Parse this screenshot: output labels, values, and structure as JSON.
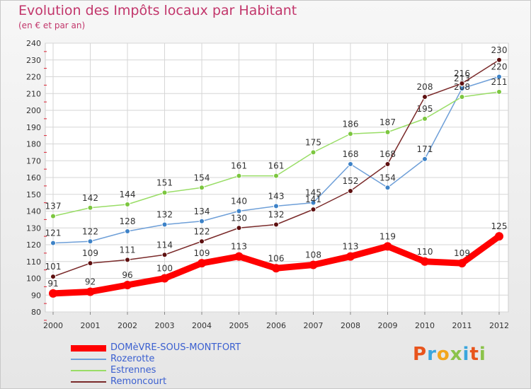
{
  "title": "Evolution des Impôts locaux par Habitant",
  "subtitle": "(en € et par an)",
  "logo": {
    "text": "Proxiti",
    "colors": [
      "#e8541c",
      "#3aa6dd",
      "#f2a51c",
      "#8bc34a",
      "#3aa6dd",
      "#e8541c",
      "#8bc34a"
    ]
  },
  "chart_data": {
    "type": "line",
    "x": [
      "2000",
      "2001",
      "2002",
      "2003",
      "2004",
      "2005",
      "2006",
      "2007",
      "2008",
      "2009",
      "2010",
      "2011",
      "2012"
    ],
    "ylim": [
      80,
      240
    ],
    "yticks": [
      80,
      90,
      100,
      110,
      120,
      130,
      140,
      150,
      160,
      170,
      180,
      190,
      200,
      210,
      220,
      230,
      240
    ],
    "grid": true,
    "legend_position": "bottom-left",
    "series": [
      {
        "name": "DOMèVRE-SOUS-MONTFORT",
        "color": "#ff0000",
        "marker": "#ff0000",
        "values": [
          91,
          92,
          96,
          100,
          109,
          113,
          106,
          108,
          113,
          119,
          110,
          109,
          125
        ]
      },
      {
        "name": "Rozerotte",
        "color": "#6e9fd8",
        "marker": "#3d82c7",
        "values": [
          121,
          122,
          128,
          132,
          134,
          140,
          143,
          145,
          168,
          154,
          171,
          213,
          220
        ]
      },
      {
        "name": "Estrennes",
        "color": "#99dd66",
        "marker": "#7cc63f",
        "values": [
          137,
          142,
          144,
          151,
          154,
          161,
          161,
          175,
          186,
          187,
          195,
          208,
          211
        ]
      },
      {
        "name": "Remoncourt",
        "color": "#7a2a2a",
        "marker": "#5e1010",
        "values": [
          101,
          109,
          111,
          114,
          122,
          130,
          132,
          141,
          152,
          168,
          208,
          216,
          230
        ]
      }
    ]
  }
}
